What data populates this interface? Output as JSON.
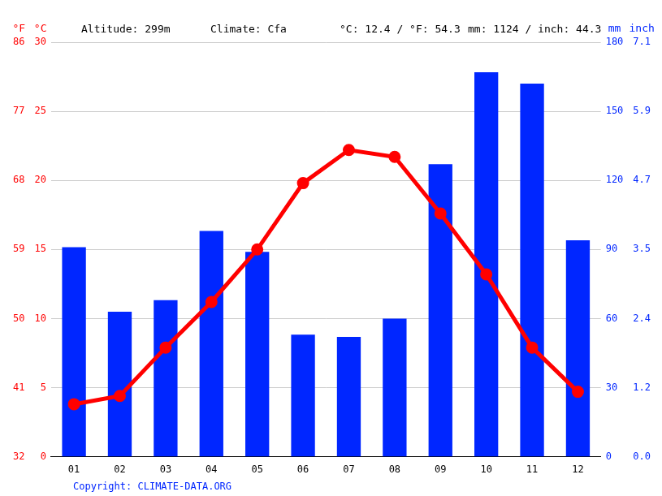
{
  "chart_data": {
    "type": "bar",
    "annotations": [
      "Altitude: 299m",
      "Climate: Cfa",
      "°C: 12.4 / °F: 54.3",
      "mm: 1124 / inch: 44.3"
    ],
    "source": "Copyright: CLIMATE-DATA.ORG",
    "categories": [
      "01",
      "02",
      "03",
      "04",
      "05",
      "06",
      "07",
      "08",
      "09",
      "10",
      "11",
      "12"
    ],
    "series": [
      {
        "type": "bar",
        "axis": "y2",
        "color": "#0026ff",
        "values": [
          91,
          63,
          68,
          98,
          89,
          53,
          52,
          60,
          127,
          167,
          162,
          94
        ]
      },
      {
        "type": "line",
        "axis": "y",
        "color": "#ff0000",
        "marker": "circle",
        "values": [
          3.8,
          4.4,
          7.9,
          11.2,
          15.0,
          19.8,
          22.2,
          21.7,
          17.6,
          13.2,
          7.9,
          4.7
        ]
      }
    ],
    "y_label": "°C",
    "ylim": [
      0,
      30
    ],
    "yticks": [
      0,
      5,
      10,
      15,
      20,
      25,
      30
    ],
    "y_f_label": "°F",
    "y_f_lim": [
      32,
      86
    ],
    "y_f_ticks": [
      32,
      41,
      50,
      59,
      68,
      77,
      86
    ],
    "y2_label": "mm",
    "y2lim": [
      0,
      180
    ],
    "y2ticks": [
      0,
      30,
      60,
      90,
      120,
      150,
      180
    ],
    "y2_in_label": "inch",
    "y2_in_lim": [
      0,
      7.087
    ],
    "y2_in_ticks": [
      {
        "value": 0,
        "label": "0.0"
      },
      {
        "value": 1.181,
        "label": "1.2"
      },
      {
        "value": 2.362,
        "label": "2.4"
      },
      {
        "value": 3.543,
        "label": "3.5"
      },
      {
        "value": 4.724,
        "label": "4.7"
      },
      {
        "value": 5.906,
        "label": "5.9"
      },
      {
        "value": 7.087,
        "label": "7.1"
      }
    ],
    "grid": true
  }
}
